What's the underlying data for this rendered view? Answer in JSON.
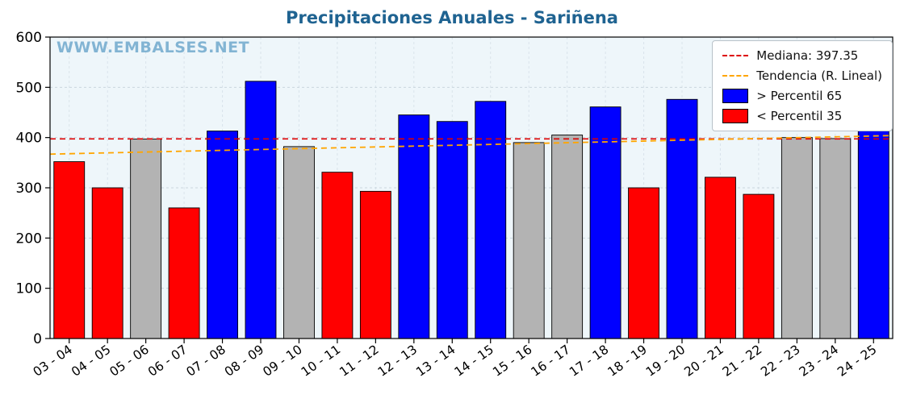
{
  "title": "Precipitaciones Anuales - Sariñena",
  "watermark": "WWW.EMBALSES.NET",
  "legend": {
    "items": [
      {
        "label": "Mediana: 397.35",
        "type": "dash",
        "color": "#dd0000"
      },
      {
        "label": "Tendencia (R. Lineal)",
        "type": "dash",
        "color": "#ffa500"
      },
      {
        "label": "> Percentil 65",
        "type": "patch",
        "color": "#0000ff"
      },
      {
        "label": "< Percentil 35",
        "type": "patch",
        "color": "#ff0000"
      }
    ]
  },
  "colors": {
    "title": "#1f6391",
    "watermark": "#5f9ec7",
    "plot_bg": "#eef6fa",
    "grid": "#c9d6de",
    "axis": "#000000",
    "bar_blue": "#0000ff",
    "bar_red": "#ff0000",
    "bar_gray": "#b3b3b3",
    "median_line": "#dd0000",
    "trend_line": "#ffa500"
  },
  "chart_data": {
    "type": "bar",
    "title": "Precipitaciones Anuales - Sariñena",
    "xlabel": "",
    "ylabel": "",
    "ylim": [
      0,
      600
    ],
    "yticks": [
      0,
      100,
      200,
      300,
      400,
      500,
      600
    ],
    "grid": true,
    "legend_position": "upper right",
    "categories": [
      "03 - 04",
      "04 - 05",
      "05 - 06",
      "06 - 07",
      "07 - 08",
      "08 - 09",
      "09 - 10",
      "10 - 11",
      "11 - 12",
      "12 - 13",
      "13 - 14",
      "14 - 15",
      "15 - 16",
      "16 - 17",
      "17 - 18",
      "18 - 19",
      "19 - 20",
      "20 - 21",
      "21 - 22",
      "22 - 23",
      "23 - 24",
      "24 - 25"
    ],
    "values": [
      352,
      300,
      397,
      260,
      413,
      512,
      382,
      331,
      293,
      445,
      432,
      472,
      390,
      405,
      461,
      300,
      476,
      321,
      287,
      400,
      398,
      413
    ],
    "bar_classes": [
      "red",
      "red",
      "gray",
      "red",
      "blue",
      "blue",
      "gray",
      "red",
      "red",
      "blue",
      "blue",
      "blue",
      "gray",
      "gray",
      "blue",
      "red",
      "blue",
      "red",
      "red",
      "gray",
      "gray",
      "blue"
    ],
    "median": 397.35,
    "trend_line": {
      "start_value": 367,
      "end_value": 404
    }
  }
}
